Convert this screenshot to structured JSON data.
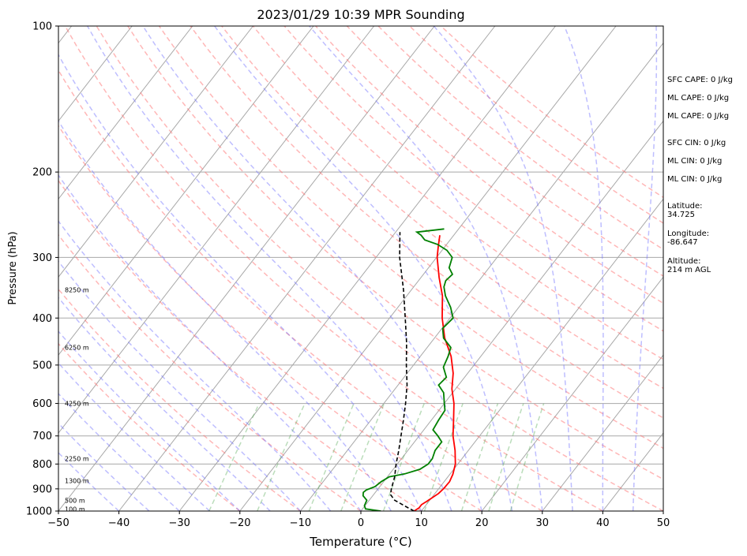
{
  "chart_data": {
    "type": "line",
    "title": "2023/01/29 10:39 MPR Sounding",
    "xlabel": "Temperature (°C)",
    "ylabel": "Pressure (hPa)",
    "xlim": [
      -50,
      50
    ],
    "ylim": [
      1000,
      100
    ],
    "y_scale": "log",
    "skew": "skew-T log-P",
    "grid": true,
    "x_ticks": [
      "−50",
      "−40",
      "−30",
      "−20",
      "−10",
      "0",
      "10",
      "20",
      "30",
      "40",
      "50"
    ],
    "y_ticks": [
      "100",
      "200",
      "300",
      "400",
      "500",
      "600",
      "700",
      "800",
      "900",
      "1000"
    ],
    "series": [
      {
        "color": "#ff0000",
        "points": [
          [
            1000,
            8.8
          ],
          [
            985,
            9.2
          ],
          [
            970,
            9.2
          ],
          [
            950,
            9.8
          ],
          [
            920,
            10.6
          ],
          [
            900,
            10.8
          ],
          [
            870,
            10.9
          ],
          [
            840,
            10.5
          ],
          [
            800,
            9.6
          ],
          [
            750,
            7.8
          ],
          [
            700,
            5.6
          ],
          [
            650,
            3.7
          ],
          [
            600,
            1.6
          ],
          [
            560,
            -0.6
          ],
          [
            520,
            -2.4
          ],
          [
            480,
            -4.9
          ],
          [
            440,
            -8.3
          ],
          [
            400,
            -11.3
          ],
          [
            360,
            -14.1
          ],
          [
            330,
            -17.0
          ],
          [
            300,
            -19.9
          ],
          [
            285,
            -21.1
          ],
          [
            270,
            -22.3
          ]
        ]
      },
      {
        "color": "#008000",
        "points": [
          [
            1000,
            3.3
          ],
          [
            990,
            0.5
          ],
          [
            975,
            -0.1
          ],
          [
            950,
            -0.4
          ],
          [
            930,
            -1.6
          ],
          [
            915,
            -2.0
          ],
          [
            905,
            -1.8
          ],
          [
            890,
            -0.8
          ],
          [
            870,
            -0.4
          ],
          [
            850,
            0.3
          ],
          [
            838,
            2.5
          ],
          [
            820,
            4.4
          ],
          [
            800,
            5.1
          ],
          [
            780,
            5.1
          ],
          [
            750,
            4.5
          ],
          [
            720,
            4.5
          ],
          [
            700,
            3.1
          ],
          [
            680,
            1.5
          ],
          [
            650,
            1.2
          ],
          [
            620,
            1.0
          ],
          [
            600,
            0.0
          ],
          [
            570,
            -1.5
          ],
          [
            550,
            -3.3
          ],
          [
            530,
            -3.0
          ],
          [
            505,
            -4.8
          ],
          [
            480,
            -5.4
          ],
          [
            460,
            -6.1
          ],
          [
            440,
            -8.5
          ],
          [
            420,
            -9.9
          ],
          [
            400,
            -9.5
          ],
          [
            380,
            -11.3
          ],
          [
            360,
            -13.6
          ],
          [
            345,
            -15.0
          ],
          [
            335,
            -15.5
          ],
          [
            325,
            -15.2
          ],
          [
            315,
            -16.6
          ],
          [
            300,
            -17.4
          ],
          [
            290,
            -19.2
          ],
          [
            282,
            -21.5
          ],
          [
            276,
            -24.2
          ],
          [
            270,
            -25.4
          ],
          [
            266,
            -26.5
          ],
          [
            262,
            -22.4
          ]
        ]
      },
      {
        "color": "#000000",
        "dash": true,
        "points": [
          [
            1000,
            8.8
          ],
          [
            975,
            6.5
          ],
          [
            950,
            4.2
          ],
          [
            925,
            2.8
          ],
          [
            900,
            2.2
          ],
          [
            850,
            1.2
          ],
          [
            800,
            -0.2
          ],
          [
            750,
            -1.5
          ],
          [
            700,
            -3.0
          ],
          [
            650,
            -4.6
          ],
          [
            600,
            -6.4
          ],
          [
            550,
            -8.5
          ],
          [
            500,
            -11.2
          ],
          [
            450,
            -14.0
          ],
          [
            400,
            -17.4
          ],
          [
            350,
            -21.3
          ],
          [
            300,
            -26.1
          ],
          [
            266,
            -29.3
          ]
        ]
      }
    ],
    "height_labels": [
      {
        "text": "8250 m",
        "p": 350
      },
      {
        "text": "6250 m",
        "p": 460
      },
      {
        "text": "4250 m",
        "p": 600
      },
      {
        "text": "2250 m",
        "p": 780
      },
      {
        "text": "1300 m",
        "p": 866
      },
      {
        "text": "500 m",
        "p": 950
      },
      {
        "text": "100 m",
        "p": 990
      }
    ],
    "side_info": [
      {
        "lines": [
          "SFC CAPE: 0 J/kg"
        ]
      },
      {
        "lines": [
          "ML CAPE: 0 J/kg"
        ]
      },
      {
        "lines": [
          "ML CAPE: 0 J/kg"
        ]
      },
      {
        "lines": [
          "SFC CIN: 0 J/kg"
        ]
      },
      {
        "lines": [
          "ML CIN: 0 J/kg"
        ]
      },
      {
        "lines": [
          "ML CIN: 0 J/kg"
        ]
      },
      {
        "lines": [
          "Latitude:",
          "34.725"
        ]
      },
      {
        "lines": [
          "Longitude:",
          "-86.647"
        ]
      },
      {
        "lines": [
          "Altitude:",
          "214 m AGL"
        ]
      }
    ]
  }
}
